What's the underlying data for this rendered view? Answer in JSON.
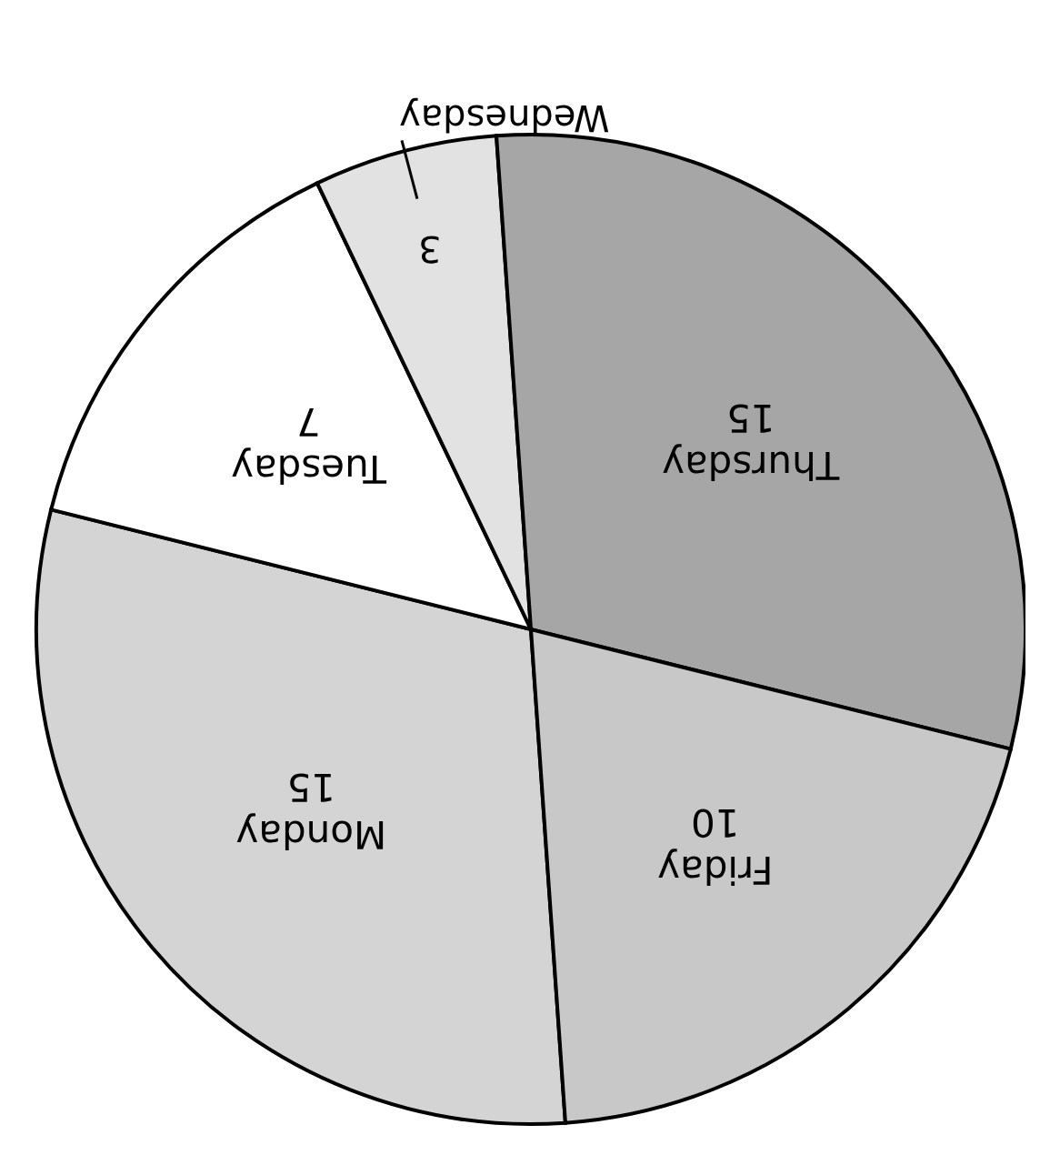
{
  "chart_data": {
    "type": "pie",
    "categories": [
      "Monday",
      "Tuesday",
      "Wednesday",
      "Thursday",
      "Friday"
    ],
    "values": [
      15,
      7,
      3,
      15,
      10
    ],
    "colors": [
      "#d4d4d4",
      "#ffffff",
      "#e2e2e2",
      "#a6a6a6",
      "#c8c8c8"
    ],
    "data_labels": true
  }
}
